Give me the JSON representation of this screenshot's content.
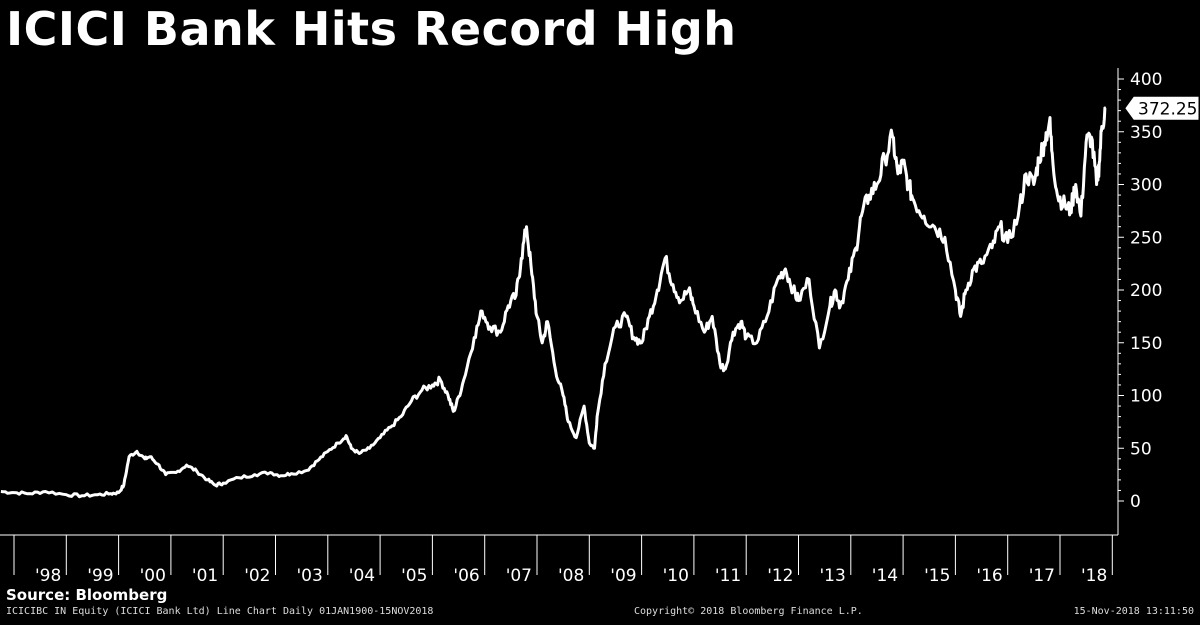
{
  "title": "ICICI Bank Hits Record High",
  "source": "Source: Bloomberg",
  "footer": {
    "left": "ICICIBC IN Equity (ICICI Bank Ltd) Line Chart  Daily 01JAN1900-15NOV2018",
    "center": "Copyright© 2018 Bloomberg Finance L.P.",
    "right": "15-Nov-2018 13:11:50"
  },
  "colors": {
    "background": "#000000",
    "line": "#ffffff",
    "axis": "#ffffff"
  },
  "chart_data": {
    "type": "line",
    "title": "ICICI Bank Hits Record High",
    "xlabel": "",
    "ylabel": "",
    "ylim": [
      -30,
      400
    ],
    "yticks": [
      0,
      50,
      100,
      150,
      200,
      250,
      300,
      350,
      400
    ],
    "xticks": [
      "'98",
      "'99",
      "'00",
      "'01",
      "'02",
      "'03",
      "'04",
      "'05",
      "'06",
      "'07",
      "'08",
      "'09",
      "'10",
      "'11",
      "'12",
      "'13",
      "'14",
      "'15",
      "'16",
      "'17",
      "'18"
    ],
    "last_value_label": "372.25",
    "series": [
      {
        "x": [
          1997.75,
          1998.0,
          1998.3,
          1998.6,
          1999.0,
          1999.3,
          1999.6,
          1999.85,
          2000.0,
          2000.1,
          2000.2,
          2000.35,
          2000.5,
          2000.6,
          2000.75,
          2000.9,
          2001.1,
          2001.3,
          2001.5,
          2001.7,
          2001.85,
          2002.0,
          2002.3,
          2002.6,
          2002.9,
          2003.1,
          2003.3,
          2003.6,
          2003.8,
          2004.0,
          2004.2,
          2004.35,
          2004.45,
          2004.6,
          2004.8,
          2005.0,
          2005.2,
          2005.4,
          2005.6,
          2005.8,
          2006.0,
          2006.15,
          2006.3,
          2006.4,
          2006.45,
          2006.6,
          2006.8,
          2006.95,
          2007.1,
          2007.3,
          2007.45,
          2007.6,
          2007.7,
          2007.8,
          2007.9,
          2008.0,
          2008.1,
          2008.2,
          2008.35,
          2008.5,
          2008.6,
          2008.75,
          2008.9,
          2009.0,
          2009.1,
          2009.15,
          2009.3,
          2009.5,
          2009.7,
          2009.85,
          2010.0,
          2010.15,
          2010.3,
          2010.45,
          2010.6,
          2010.75,
          2010.9,
          2011.0,
          2011.2,
          2011.35,
          2011.5,
          2011.6,
          2011.75,
          2011.9,
          2012.0,
          2012.2,
          2012.4,
          2012.6,
          2012.75,
          2012.9,
          2013.0,
          2013.2,
          2013.4,
          2013.6,
          2013.7,
          2013.8,
          2013.95,
          2014.1,
          2014.2,
          2014.35,
          2014.5,
          2014.65,
          2014.8,
          2014.9,
          2015.0,
          2015.1,
          2015.2,
          2015.4,
          2015.6,
          2015.8,
          2016.0,
          2016.1,
          2016.2,
          2016.35,
          2016.5,
          2016.7,
          2016.85,
          2017.0,
          2017.2,
          2017.35,
          2017.5,
          2017.6,
          2017.7,
          2017.8,
          2017.85,
          2017.95,
          2018.1,
          2018.2,
          2018.3,
          2018.4,
          2018.5,
          2018.6,
          2018.7,
          2018.75,
          2018.8,
          2018.87
        ],
        "values": [
          9,
          8,
          7,
          9,
          6,
          5,
          6,
          7,
          8,
          15,
          42,
          47,
          40,
          42,
          35,
          25,
          27,
          34,
          28,
          20,
          15,
          17,
          22,
          25,
          27,
          24,
          26,
          29,
          38,
          47,
          55,
          62,
          50,
          45,
          50,
          60,
          70,
          80,
          95,
          105,
          110,
          115,
          100,
          85,
          90,
          115,
          155,
          180,
          165,
          160,
          185,
          195,
          230,
          260,
          215,
          175,
          150,
          170,
          125,
          100,
          75,
          60,
          90,
          55,
          50,
          80,
          130,
          165,
          175,
          155,
          150,
          175,
          200,
          230,
          205,
          190,
          200,
          185,
          160,
          175,
          130,
          125,
          160,
          170,
          155,
          150,
          175,
          210,
          220,
          200,
          190,
          210,
          145,
          185,
          200,
          185,
          210,
          240,
          270,
          290,
          300,
          325,
          345,
          310,
          320,
          300,
          285,
          270,
          260,
          250,
          200,
          175,
          200,
          220,
          225,
          240,
          260,
          245,
          270,
          310,
          300,
          325,
          340,
          360,
          330,
          290,
          280,
          275,
          300,
          270,
          340,
          345,
          300,
          320,
          355,
          372.25
        ]
      }
    ]
  }
}
